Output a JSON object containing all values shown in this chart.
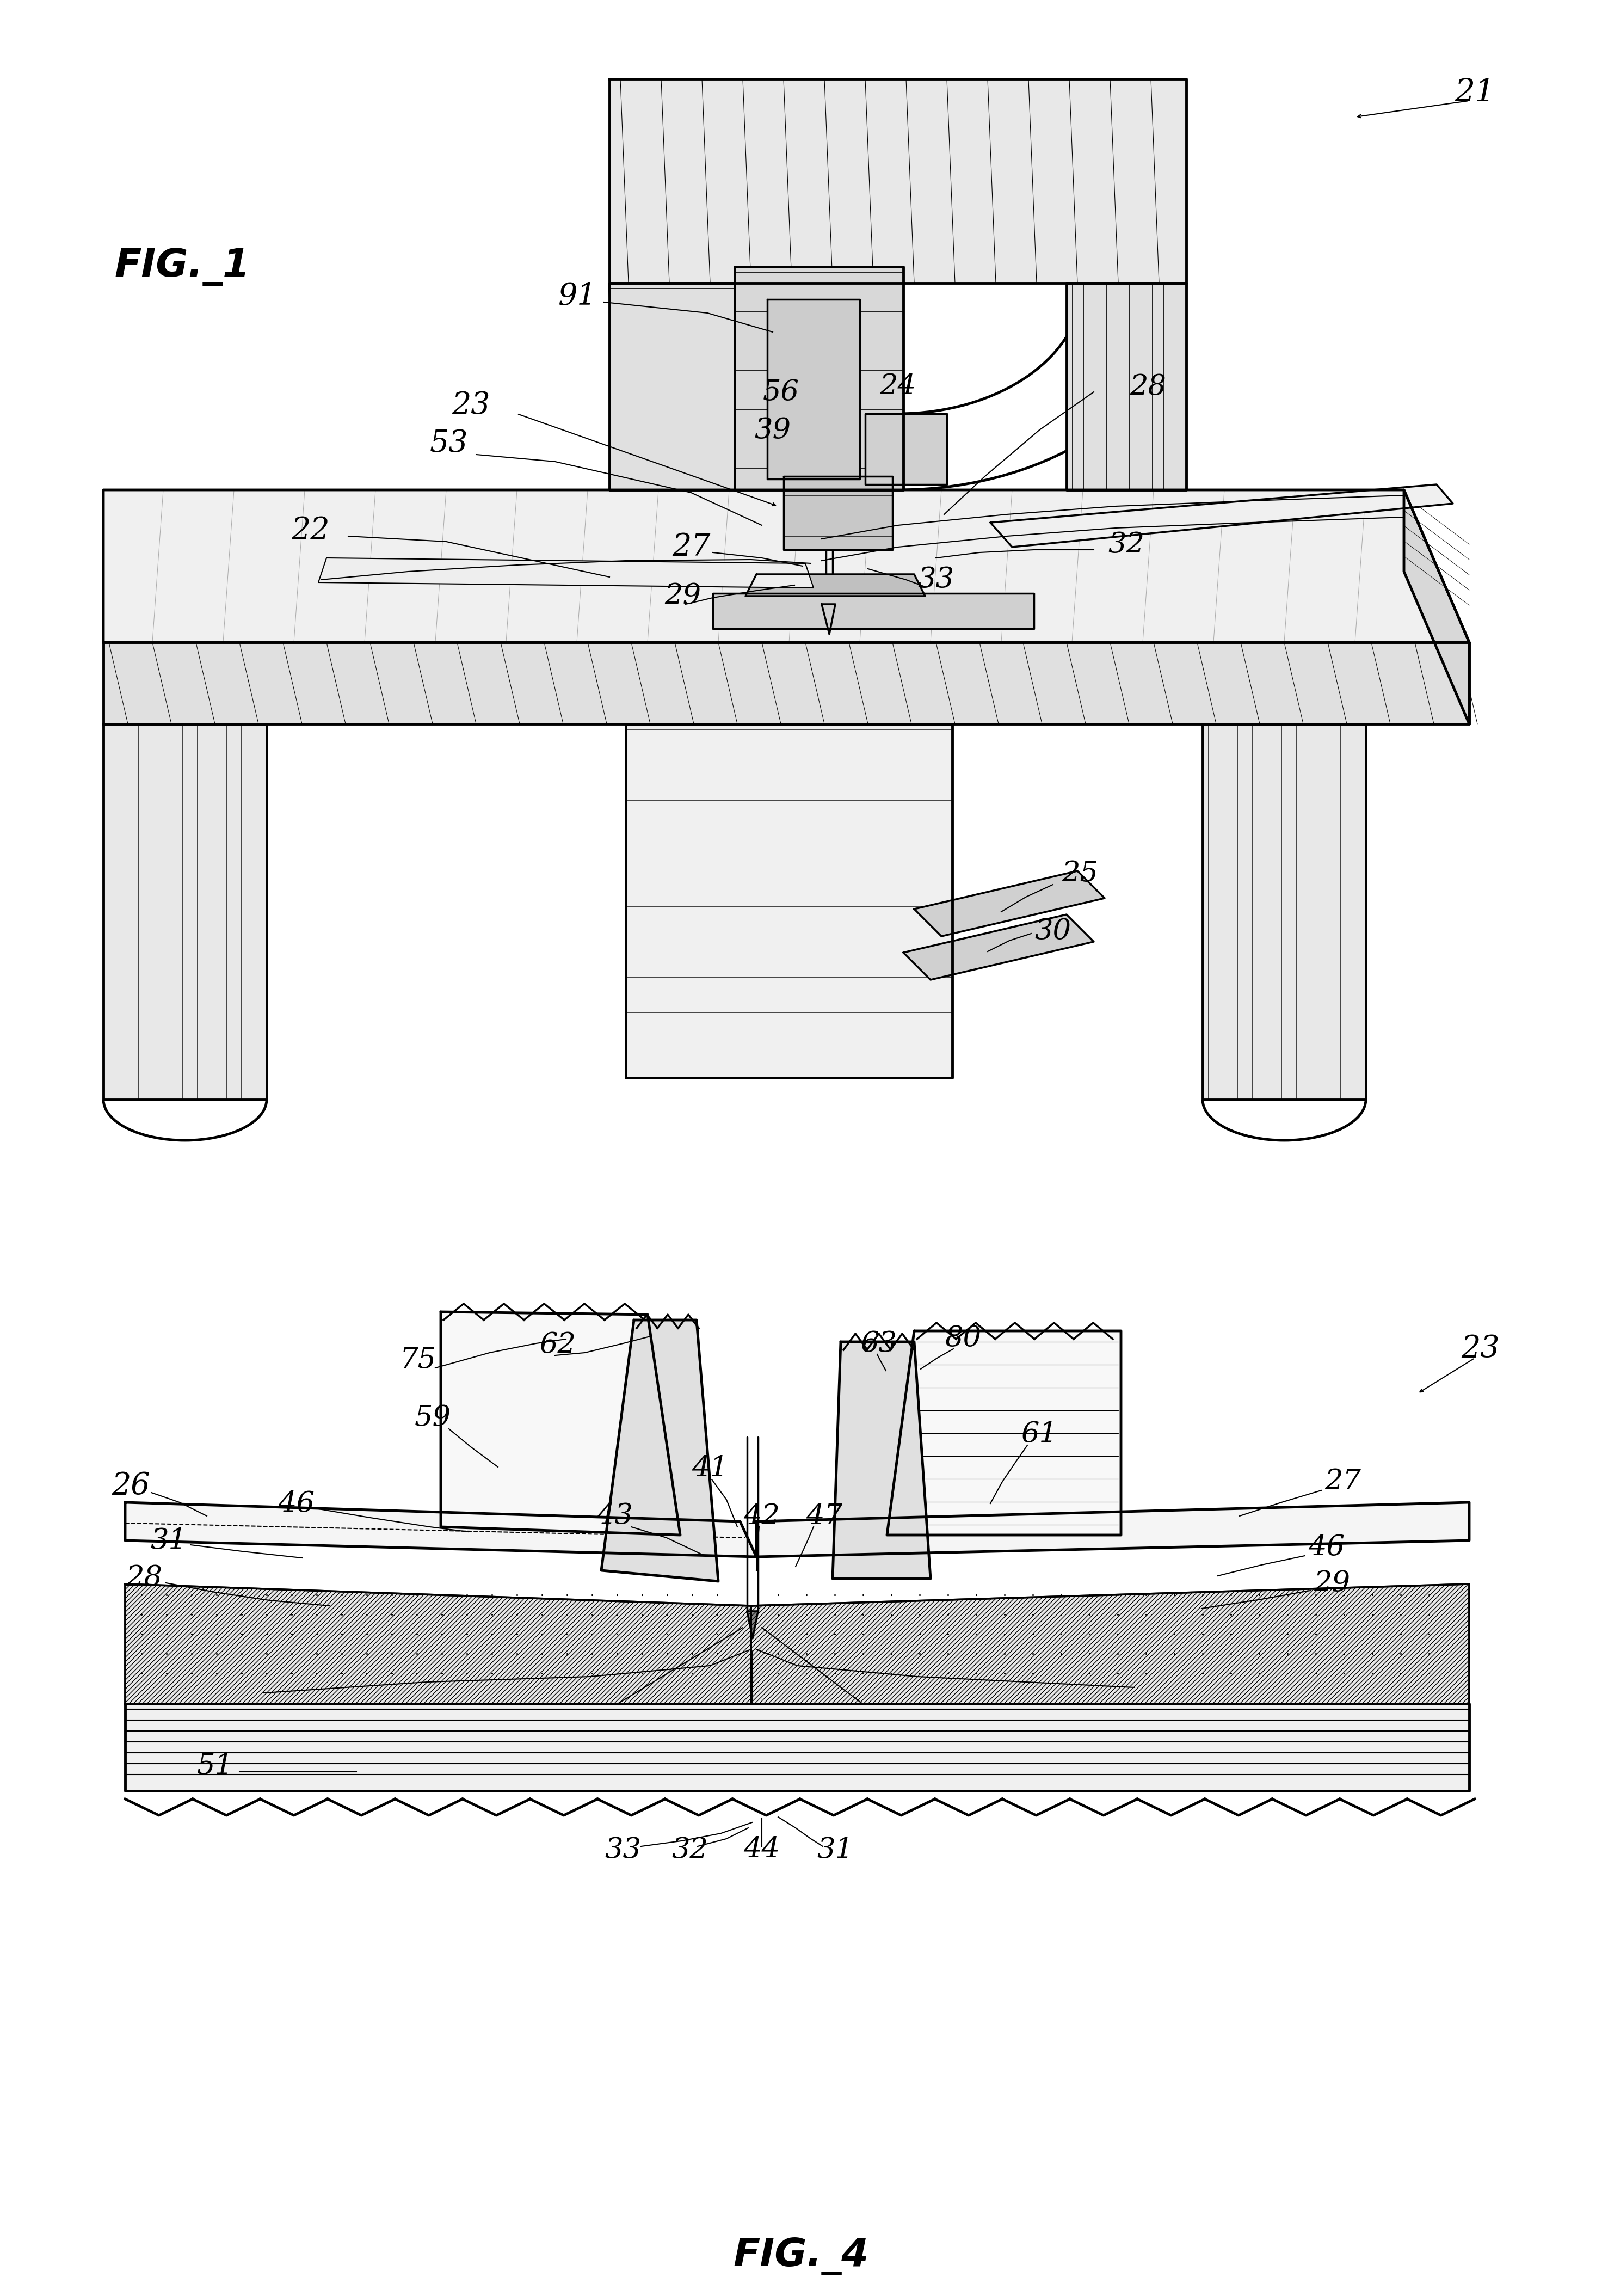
{
  "fig_width": 29.44,
  "fig_height": 42.18,
  "bg_color": "#ffffff",
  "line_color": "#000000",
  "fig1_label": "FIG._1",
  "fig4_label": "FIG._4"
}
